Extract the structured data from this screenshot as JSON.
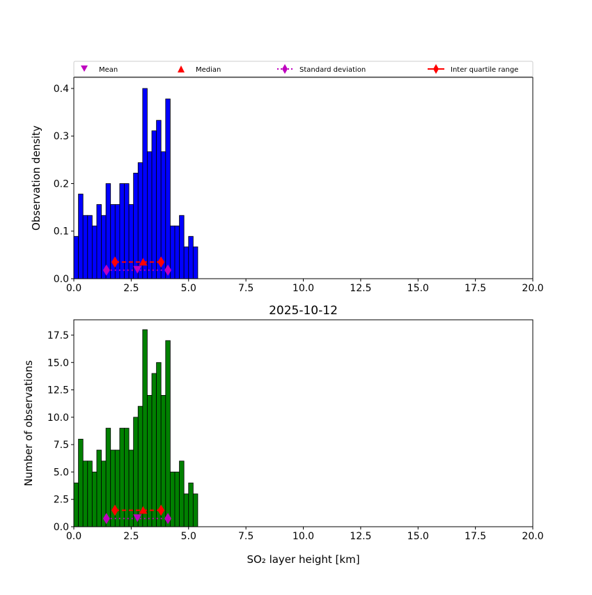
{
  "chart_data": [
    {
      "type": "bar",
      "title": "",
      "xlabel": "",
      "ylabel": "Observation density",
      "xlim": [
        0,
        20
      ],
      "ylim": [
        0,
        0.4234
      ],
      "xticks": [
        "0.0",
        "2.5",
        "5.0",
        "7.5",
        "10.0",
        "12.5",
        "15.0",
        "17.5",
        "20.0"
      ],
      "yticks": [
        "0.0",
        "0.1",
        "0.2",
        "0.3",
        "0.4"
      ],
      "ytick_values": [
        0,
        0.1,
        0.2,
        0.3,
        0.4
      ],
      "bin_width": 0.2,
      "bin_starts": [
        0,
        0.2,
        0.4,
        0.6,
        0.8,
        1.0,
        1.2,
        1.4,
        1.6,
        1.8,
        2.0,
        2.2,
        2.4,
        2.6,
        2.8,
        3.0,
        3.2,
        3.4,
        3.6,
        3.8,
        4.0,
        4.2,
        4.4,
        4.6,
        4.8,
        5.0,
        5.2
      ],
      "values": [
        0.089,
        0.178,
        0.133,
        0.133,
        0.111,
        0.156,
        0.133,
        0.2,
        0.156,
        0.156,
        0.2,
        0.2,
        0.156,
        0.222,
        0.244,
        0.4,
        0.267,
        0.311,
        0.333,
        0.267,
        0.378,
        0.111,
        0.111,
        0.133,
        0.067,
        0.089,
        0.067
      ],
      "color": "#0000ff",
      "stats": {
        "mean": 2.77,
        "median": 3.02,
        "iqr": [
          1.79,
          3.8
        ],
        "std_range": [
          1.42,
          4.1
        ],
        "iqr_y": 0.035,
        "std_y": 0.018
      }
    },
    {
      "type": "bar",
      "title": "2025-10-12",
      "xlabel": "SO₂ layer height [km]",
      "ylabel": "Number of observations",
      "xlim": [
        0,
        20
      ],
      "ylim": [
        0,
        18.9
      ],
      "xticks": [
        "0.0",
        "2.5",
        "5.0",
        "7.5",
        "10.0",
        "12.5",
        "15.0",
        "17.5",
        "20.0"
      ],
      "yticks": [
        "0.0",
        "2.5",
        "5.0",
        "7.5",
        "10.0",
        "12.5",
        "15.0",
        "17.5"
      ],
      "ytick_values": [
        0,
        2.5,
        5,
        7.5,
        10,
        12.5,
        15,
        17.5
      ],
      "bin_width": 0.2,
      "bin_starts": [
        0,
        0.2,
        0.4,
        0.6,
        0.8,
        1.0,
        1.2,
        1.4,
        1.6,
        1.8,
        2.0,
        2.2,
        2.4,
        2.6,
        2.8,
        3.0,
        3.2,
        3.4,
        3.6,
        3.8,
        4.0,
        4.2,
        4.4,
        4.6,
        4.8,
        5.0,
        5.2
      ],
      "values": [
        4,
        8,
        6,
        6,
        5,
        7,
        6,
        9,
        7,
        7,
        9,
        9,
        7,
        10,
        11,
        18,
        12,
        14,
        15,
        12,
        17,
        5,
        5,
        6,
        3,
        4,
        3
      ],
      "color": "#008000",
      "stats": {
        "mean": 2.77,
        "median": 3.02,
        "iqr": [
          1.79,
          3.8
        ],
        "std_range": [
          1.42,
          4.1
        ],
        "iqr_y": 1.5,
        "std_y": 0.75
      }
    }
  ],
  "legend": {
    "placement": "top",
    "entries": [
      "Mean",
      "Median",
      "Standard deviation",
      "Inter quartile range"
    ],
    "colors": {
      "mean": "#bf00bf",
      "median": "#ff0000",
      "std": "#bf00bf",
      "iqr": "#ff0000"
    }
  }
}
